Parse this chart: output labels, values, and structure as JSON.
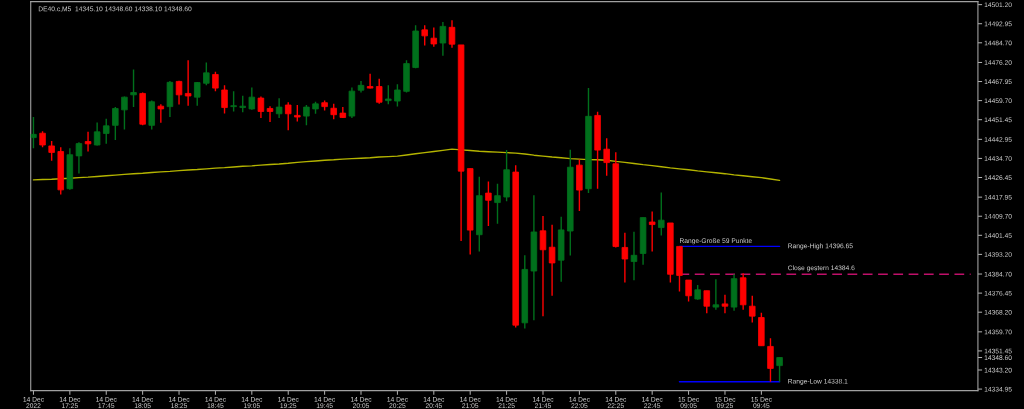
{
  "chart_data": {
    "type": "candlestick",
    "title": "DE40.c,M5  14345.10 14348.60 14338.10 14348.60",
    "categories": [
      "14 Dec 2022",
      null,
      null,
      null,
      "14 Dec 17:25",
      null,
      null,
      null,
      "14 Dec 17:45",
      null,
      null,
      null,
      "14 Dec 18:05",
      null,
      null,
      null,
      "14 Dec 18:25",
      null,
      null,
      null,
      "14 Dec 18:45",
      null,
      null,
      null,
      "14 Dec 19:05",
      null,
      null,
      null,
      "14 Dec 19:25",
      null,
      null,
      null,
      "14 Dec 19:45",
      null,
      null,
      null,
      "14 Dec 20:05",
      null,
      null,
      null,
      "14 Dec 20:25",
      null,
      null,
      null,
      "14 Dec 20:45",
      null,
      null,
      null,
      "14 Dec 21:05",
      null,
      null,
      null,
      "14 Dec 21:25",
      null,
      null,
      null,
      "14 Dec 21:45",
      null,
      null,
      null,
      "14 Dec 22:05",
      null,
      null,
      null,
      "14 Dec 22:25",
      null,
      null,
      null,
      "14 Dec 22:45",
      null,
      null,
      null,
      "15 Dec 09:05",
      null,
      null,
      null,
      "15 Dec 09:25",
      null,
      null,
      null,
      "15 Dec 09:45",
      null,
      null,
      null,
      null,
      null,
      null,
      null,
      null,
      null,
      null,
      null,
      null,
      null,
      null,
      null,
      null,
      null,
      null,
      null,
      null,
      null,
      null,
      null
    ],
    "ohlc": [
      [
        14443.7,
        14452.6,
        14439.1,
        14445.1
      ],
      [
        14445.6,
        14446.5,
        14439.5,
        14440.5
      ],
      [
        14440.1,
        14442.2,
        14433.7,
        14437.3
      ],
      [
        14437.7,
        14439.5,
        14419.1,
        14421.1
      ],
      [
        14421.6,
        14439.1,
        14421.1,
        14436.3
      ],
      [
        14435.8,
        14441.7,
        14428.2,
        14441.1
      ],
      [
        14442.0,
        14446.2,
        14437.7,
        14441.0
      ],
      [
        14440.5,
        14450.2,
        14440.3,
        14446.2
      ],
      [
        14445.5,
        14451.9,
        14441.0,
        14448.8
      ],
      [
        14449.0,
        14456.9,
        14442.7,
        14456.3
      ],
      [
        14455.7,
        14461.5,
        14447.2,
        14461.2
      ],
      [
        14462.2,
        14473.1,
        14456.9,
        14463.2
      ],
      [
        14462.8,
        14463.2,
        14449.0,
        14449.5
      ],
      [
        14449.0,
        14459.7,
        14447.2,
        14459.2
      ],
      [
        14457.3,
        14458.1,
        14450.1,
        14456.1
      ],
      [
        14457.1,
        14468.2,
        14452.6,
        14467.6
      ],
      [
        14468.0,
        14468.3,
        14458.0,
        14462.2
      ],
      [
        14462.8,
        14477.1,
        14457.5,
        14461.7
      ],
      [
        14461.2,
        14467.7,
        14457.5,
        14467.5
      ],
      [
        14467.2,
        14476.2,
        14466.3,
        14471.7
      ],
      [
        14471.0,
        14472.2,
        14463.7,
        14465.1
      ],
      [
        14464.3,
        14466.3,
        14454.1,
        14456.7
      ],
      [
        14457.1,
        14463.8,
        14455.0,
        14457.5
      ],
      [
        14456.7,
        14461.8,
        14454.7,
        14457.3
      ],
      [
        14456.1,
        14465.4,
        14455.8,
        14461.2
      ],
      [
        14460.8,
        14461.5,
        14452.2,
        14455.0
      ],
      [
        14456.3,
        14457.3,
        14450.5,
        14455.0
      ],
      [
        14454.0,
        14460.7,
        14452.2,
        14456.9
      ],
      [
        14457.8,
        14459.0,
        14446.9,
        14454.0
      ],
      [
        14453.3,
        14457.8,
        14450.7,
        14452.6
      ],
      [
        14453.0,
        14457.8,
        14449.0,
        14456.9
      ],
      [
        14456.1,
        14459.2,
        14454.0,
        14458.3
      ],
      [
        14458.8,
        14459.7,
        14455.4,
        14457.1
      ],
      [
        14456.4,
        14458.3,
        14451.6,
        14453.6
      ],
      [
        14454.3,
        14456.9,
        14452.2,
        14452.4
      ],
      [
        14453.0,
        14465.4,
        14452.2,
        14463.8
      ],
      [
        14464.2,
        14468.2,
        14463.2,
        14466.3
      ],
      [
        14465.8,
        14471.3,
        14464.9,
        14465.1
      ],
      [
        14465.8,
        14469.2,
        14458.3,
        14459.0
      ],
      [
        14459.7,
        14466.3,
        14458.1,
        14460.4
      ],
      [
        14459.5,
        14466.8,
        14457.1,
        14464.3
      ],
      [
        14463.7,
        14477.1,
        14463.2,
        14475.7
      ],
      [
        14474.0,
        14492.3,
        14473.7,
        14489.8
      ],
      [
        14490.3,
        14492.3,
        14483.5,
        14487.7
      ],
      [
        14486.7,
        14491.3,
        14483.0,
        14484.2
      ],
      [
        14484.6,
        14493.7,
        14479.1,
        14491.8
      ],
      [
        14491.4,
        14494.4,
        14482.6,
        14484.1
      ],
      [
        14483.8,
        14483.8,
        14399.0,
        14429.2
      ],
      [
        14430.3,
        14430.3,
        14393.1,
        14403.7
      ],
      [
        14401.7,
        14426.8,
        14394.5,
        14418.6
      ],
      [
        14419.7,
        14424.7,
        14405.5,
        14416.6
      ],
      [
        14415.6,
        14423.8,
        14406.5,
        14418.6
      ],
      [
        14418.0,
        14438.3,
        14416.2,
        14429.8
      ],
      [
        14428.8,
        14431.8,
        14361.6,
        14362.6
      ],
      [
        14363.6,
        14392.8,
        14361.2,
        14386.7
      ],
      [
        14386.0,
        14418.8,
        14364.7,
        14402.9
      ],
      [
        14403.4,
        14409.8,
        14366.5,
        14395.2
      ],
      [
        14396.3,
        14406.0,
        14375.3,
        14389.5
      ],
      [
        14390.7,
        14409.5,
        14381.4,
        14403.8
      ],
      [
        14403.3,
        14438.4,
        14392.7,
        14430.9
      ],
      [
        14431.8,
        14434.2,
        14412.0,
        14421.0
      ],
      [
        14421.6,
        14465.1,
        14419.7,
        14452.9
      ],
      [
        14453.3,
        14454.9,
        14421.6,
        14438.3
      ],
      [
        14438.7,
        14443.4,
        14427.2,
        14432.9
      ],
      [
        14432.4,
        14437.4,
        14396.2,
        14396.6
      ],
      [
        14396.2,
        14402.6,
        14381.0,
        14391.2
      ],
      [
        14390.1,
        14403.0,
        14382.0,
        14392.8
      ],
      [
        14393.6,
        14409.1,
        14388.7,
        14409.1
      ],
      [
        14407.2,
        14411.8,
        14394.4,
        14406.1
      ],
      [
        14404.8,
        14420.0,
        14401.4,
        14408.0
      ],
      [
        14406.8,
        14406.8,
        14381.0,
        14384.6
      ],
      [
        14396.65,
        14396.65,
        14377.2,
        14384.1
      ],
      [
        14382.1,
        14382.1,
        14372.8,
        14375.3
      ],
      [
        14373.9,
        14380.0,
        14373.6,
        14377.9
      ],
      [
        14377.5,
        14377.5,
        14367.8,
        14370.8
      ],
      [
        14370.4,
        14382.4,
        14369.3,
        14371.4
      ],
      [
        14371.8,
        14375.8,
        14367.8,
        14370.8
      ],
      [
        14370.4,
        14384.6,
        14368.8,
        14382.7
      ],
      [
        14383.1,
        14385.0,
        14369.3,
        14371.4
      ],
      [
        14370.8,
        14375.3,
        14363.7,
        14366.5
      ],
      [
        14365.9,
        14368.0,
        14353.7,
        14353.7
      ],
      [
        14353.4,
        14356.9,
        14338.1,
        14343.9
      ],
      [
        14345.1,
        14348.6,
        14338.1,
        14348.6
      ],
      null,
      null,
      null,
      null,
      null,
      null,
      null,
      null,
      null,
      null,
      null,
      null,
      null,
      null,
      null,
      null,
      null,
      null,
      null,
      null,
      null
    ],
    "colors": [
      "#00701c",
      "#ff0000",
      "#ff0000",
      "#ff0000",
      "#00701c",
      "#00701c",
      "#ff0000",
      "#00701c",
      "#00701c",
      "#00701c",
      "#00701c",
      "#00701c",
      "#ff0000",
      "#00701c",
      "#ff0000",
      "#00701c",
      "#ff0000",
      "#ff0000",
      "#00701c",
      "#00701c",
      "#ff0000",
      "#ff0000",
      "#00701c",
      "#00701c",
      "#00701c",
      "#ff0000",
      "#ff0000",
      "#00701c",
      "#ff0000",
      "#ff0000",
      "#00701c",
      "#00701c",
      "#ff0000",
      "#ff0000",
      "#ff0000",
      "#00701c",
      "#00701c",
      "#ff0000",
      "#ff0000",
      "#00701c",
      "#00701c",
      "#00701c",
      "#00701c",
      "#ff0000",
      "#ff0000",
      "#00701c",
      "#ff0000",
      "#ff0000",
      "#ff0000",
      "#00701c",
      "#ff0000",
      "#00701c",
      "#00701c",
      "#ff0000",
      "#00701c",
      "#00701c",
      "#ff0000",
      "#ff0000",
      "#00701c",
      "#00701c",
      "#ff0000",
      "#00701c",
      "#ff0000",
      "#ff0000",
      "#ff0000",
      "#ff0000",
      "#00701c",
      "#00701c",
      "#ff0000",
      "#00701c",
      "#ff0000",
      "#ff0000",
      "#ff0000",
      "#00701c",
      "#ff0000",
      "#00701c",
      "#ff0000",
      "#00701c",
      "#ff0000",
      "#ff0000",
      "#ff0000",
      "#ff0000",
      "#00701c",
      null,
      null,
      null,
      null,
      null,
      null,
      null,
      null,
      null,
      null,
      null,
      null,
      null,
      null,
      null,
      null,
      null,
      null,
      null,
      null,
      null
    ],
    "series": [
      {
        "type": "line",
        "color": "#b4b400",
        "values": [
          14425.4,
          14425.6,
          14425.7,
          14425.9,
          14426.1,
          14426.4,
          14426.6,
          14426.9,
          14427.2,
          14427.5,
          14427.8,
          14428.1,
          14428.3,
          14428.6,
          14428.9,
          14429.1,
          14429.4,
          14429.7,
          14429.9,
          14430.2,
          14430.5,
          14430.7,
          14431.0,
          14431.3,
          14431.5,
          14431.8,
          14432.1,
          14432.3,
          14432.6,
          14433.0,
          14433.3,
          14433.6,
          14433.9,
          14434.1,
          14434.4,
          14434.6,
          14434.8,
          14435.0,
          14435.3,
          14435.5,
          14435.7,
          14436.2,
          14436.7,
          14437.2,
          14437.7,
          14438.2,
          14438.7,
          14438.4,
          14438.1,
          14437.8,
          14437.6,
          14437.4,
          14437.2,
          14437.0,
          14436.6,
          14436.1,
          14435.7,
          14435.3,
          14435.0,
          14434.6,
          14434.4,
          14434.2,
          14434.1,
          14433.9,
          14433.4,
          14433.0,
          14432.5,
          14432.0,
          14431.6,
          14431.1,
          14430.6,
          14430.2,
          14429.8,
          14429.3,
          14428.9,
          14428.5,
          14428.1,
          14427.6,
          14427.2,
          14426.8,
          14426.4,
          14425.8,
          14425.2,
          null,
          null,
          null,
          null,
          null,
          null,
          null,
          null,
          null,
          null,
          null,
          null,
          null,
          null,
          null,
          null,
          null,
          null,
          null,
          null,
          null
        ]
      },
      {
        "type": "line",
        "name": "Range-High 14396.65",
        "color": "#0000ff",
        "values": [
          null,
          null,
          null,
          null,
          null,
          null,
          null,
          null,
          null,
          null,
          null,
          null,
          null,
          null,
          null,
          null,
          null,
          null,
          null,
          null,
          null,
          null,
          null,
          null,
          null,
          null,
          null,
          null,
          null,
          null,
          null,
          null,
          null,
          null,
          null,
          null,
          null,
          null,
          null,
          null,
          null,
          null,
          null,
          null,
          null,
          null,
          null,
          null,
          null,
          null,
          null,
          null,
          null,
          null,
          null,
          null,
          null,
          null,
          null,
          null,
          null,
          null,
          null,
          null,
          null,
          null,
          null,
          null,
          null,
          null,
          null,
          14396.65,
          14396.65,
          14396.65,
          14396.65,
          14396.65,
          14396.65,
          14396.65,
          14396.65,
          14396.65,
          14396.65,
          14396.65,
          14396.65,
          null,
          null,
          null,
          null,
          null,
          null,
          null,
          null,
          null,
          null,
          null,
          null,
          null,
          null,
          null,
          null,
          null,
          null,
          null,
          null,
          null
        ]
      },
      {
        "type": "line",
        "name": "Close gestern 14384.6",
        "color": "#c0106a",
        "line_style": "dashed",
        "values": [
          null,
          null,
          null,
          null,
          null,
          null,
          null,
          null,
          null,
          null,
          null,
          null,
          null,
          null,
          null,
          null,
          null,
          null,
          null,
          null,
          null,
          null,
          null,
          null,
          null,
          null,
          null,
          null,
          null,
          null,
          null,
          null,
          null,
          null,
          null,
          null,
          null,
          null,
          null,
          null,
          null,
          null,
          null,
          null,
          null,
          null,
          null,
          null,
          null,
          null,
          null,
          null,
          null,
          null,
          null,
          null,
          null,
          null,
          null,
          null,
          null,
          null,
          null,
          null,
          null,
          null,
          null,
          null,
          null,
          null,
          null,
          14384.6,
          14384.6,
          14384.6,
          14384.6,
          14384.6,
          14384.6,
          14384.6,
          14384.6,
          14384.6,
          14384.6,
          14384.6,
          14384.6,
          14384.6,
          14384.6,
          14384.6,
          14384.6,
          14384.6,
          14384.6,
          14384.6,
          14384.6,
          14384.6,
          14384.6,
          14384.6,
          14384.6,
          14384.6,
          14384.6,
          14384.6,
          14384.6,
          14384.6,
          14384.6,
          14384.6,
          14384.6,
          14384.6
        ]
      },
      {
        "type": "line",
        "name": "Range-Low 14338.1",
        "color": "#0000ff",
        "values": [
          null,
          null,
          null,
          null,
          null,
          null,
          null,
          null,
          null,
          null,
          null,
          null,
          null,
          null,
          null,
          null,
          null,
          null,
          null,
          null,
          null,
          null,
          null,
          null,
          null,
          null,
          null,
          null,
          null,
          null,
          null,
          null,
          null,
          null,
          null,
          null,
          null,
          null,
          null,
          null,
          null,
          null,
          null,
          null,
          null,
          null,
          null,
          null,
          null,
          null,
          null,
          null,
          null,
          null,
          null,
          null,
          null,
          null,
          null,
          null,
          null,
          null,
          null,
          null,
          null,
          null,
          null,
          null,
          null,
          null,
          null,
          14338.1,
          14338.1,
          14338.1,
          14338.1,
          14338.1,
          14338.1,
          14338.1,
          14338.1,
          14338.1,
          14338.1,
          14338.1,
          14338.1,
          null,
          null,
          null,
          null,
          null,
          null,
          null,
          null,
          null,
          null,
          null,
          null,
          null,
          null,
          null,
          null,
          null,
          null,
          null,
          null,
          null
        ]
      }
    ],
    "annotations": [
      {
        "text": "Range-Große 59 Punkte",
        "y": 14396.65
      }
    ],
    "ylim": [
      14334.3,
      14502.5
    ],
    "yticks": [
      14334.95,
      {
        "value": 14343.2,
        "label": "14343.20"
      },
      {
        "value": 14348.6,
        "label": "14348.60"
      },
      14351.45,
      {
        "value": 14359.7,
        "label": "14359.70"
      },
      {
        "value": 14368.2,
        "label": "14368.20"
      },
      14376.45,
      {
        "value": 14384.7,
        "label": "14384.70"
      },
      {
        "value": 14393.2,
        "label": "14393.20"
      },
      14401.45,
      {
        "value": 14409.7,
        "label": "14409.70"
      },
      14417.95,
      14426.45,
      {
        "value": 14434.7,
        "label": "14434.70"
      },
      14442.95,
      14451.45,
      {
        "value": 14459.7,
        "label": "14459.70"
      },
      14467.95,
      {
        "value": 14476.2,
        "label": "14476.20"
      },
      {
        "value": 14484.7,
        "label": "14484.70"
      },
      14492.95,
      {
        "value": 14501.2,
        "label": "14501.20"
      }
    ]
  }
}
